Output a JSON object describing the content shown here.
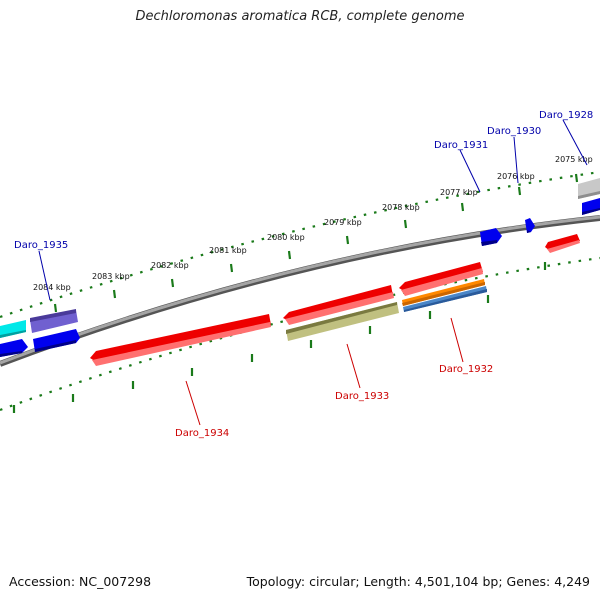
{
  "title": "Dechloromonas aromatica RCB, complete genome",
  "footer": {
    "accession": "Accession: NC_007298",
    "summary": "Topology: circular; Length: 4,501,104 bp; Genes: 4,249"
  },
  "colors": {
    "backbone": "#8a8a8a",
    "tick": "#1a7a1a",
    "label_forward": "#0000aa",
    "label_reverse": "#cc0000",
    "red": "#ee0000",
    "blue": "#0000ee",
    "olive": "#b8b878",
    "orange": "#ff8800",
    "steelblue": "#4a86c8",
    "purple": "#6a5acd",
    "cyan": "#00e8e8",
    "gray": "#bcbcbc"
  },
  "ticks": [
    "2075 kbp",
    "2076 kbp",
    "2077 kbp",
    "2078 kbp",
    "2079 kbp",
    "2080 kbp",
    "2081 kbp",
    "2082 kbp",
    "2083 kbp",
    "2084 kbp"
  ],
  "labels_top": [
    "Daro_1928",
    "Daro_1930",
    "Daro_1931",
    "Daro_1935"
  ],
  "labels_bottom": [
    "Daro_1932",
    "Daro_1933",
    "Daro_1934"
  ]
}
